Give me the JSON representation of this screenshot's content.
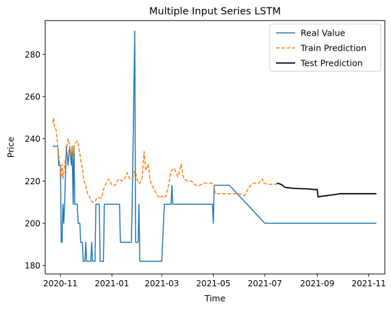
{
  "chart_data": {
    "type": "line",
    "title": "Multiple Input Series LSTM",
    "xlabel": "Time",
    "ylabel": "Price",
    "x_type": "date",
    "xlim": [
      "2020-10-14",
      "2021-11-20"
    ],
    "ylim": [
      176,
      296
    ],
    "x_ticks": [
      {
        "date": "2020-11-01",
        "label": "2020-11"
      },
      {
        "date": "2021-01-01",
        "label": "2021-01"
      },
      {
        "date": "2021-03-01",
        "label": "2021-03"
      },
      {
        "date": "2021-05-01",
        "label": "2021-05"
      },
      {
        "date": "2021-07-01",
        "label": "2021-07"
      },
      {
        "date": "2021-09-01",
        "label": "2021-09"
      },
      {
        "date": "2021-11-01",
        "label": "2021-11"
      }
    ],
    "y_ticks": [
      180,
      200,
      220,
      240,
      260,
      280
    ],
    "grid": false,
    "legend_position": "upper-right",
    "series": [
      {
        "name": "Real Value",
        "color": "#1f77b4",
        "dash": "solid",
        "points": [
          [
            "2020-10-23",
            236.5
          ],
          [
            "2020-10-29",
            236.5
          ],
          [
            "2020-10-30",
            227.5
          ],
          [
            "2020-11-01",
            227.5
          ],
          [
            "2020-11-02",
            191
          ],
          [
            "2020-11-03",
            191
          ],
          [
            "2020-11-04",
            209
          ],
          [
            "2020-11-05",
            200
          ],
          [
            "2020-11-06",
            209
          ],
          [
            "2020-11-08",
            236.5
          ],
          [
            "2020-11-10",
            227.5
          ],
          [
            "2020-11-12",
            236.5
          ],
          [
            "2020-11-14",
            227.5
          ],
          [
            "2020-11-15",
            236.5
          ],
          [
            "2020-11-16",
            209
          ],
          [
            "2020-11-17",
            236.5
          ],
          [
            "2020-11-18",
            209
          ],
          [
            "2020-11-21",
            209
          ],
          [
            "2020-11-22",
            200
          ],
          [
            "2020-11-24",
            200
          ],
          [
            "2020-11-25",
            191
          ],
          [
            "2020-11-27",
            191
          ],
          [
            "2020-11-28",
            182
          ],
          [
            "2020-11-30",
            182
          ],
          [
            "2020-12-01",
            191
          ],
          [
            "2020-12-02",
            182
          ],
          [
            "2020-12-07",
            182
          ],
          [
            "2020-12-08",
            191
          ],
          [
            "2020-12-09",
            182
          ],
          [
            "2020-12-12",
            182
          ],
          [
            "2020-12-13",
            209
          ],
          [
            "2020-12-17",
            209
          ],
          [
            "2020-12-18",
            182
          ],
          [
            "2020-12-22",
            182
          ],
          [
            "2020-12-23",
            209
          ],
          [
            "2021-01-08",
            209
          ],
          [
            "2021-01-10",
            209
          ],
          [
            "2021-01-11",
            191
          ],
          [
            "2021-01-24",
            191
          ],
          [
            "2021-01-25",
            209
          ],
          [
            "2021-01-28",
            291
          ],
          [
            "2021-01-29",
            191
          ],
          [
            "2021-02-01",
            191
          ],
          [
            "2021-02-02",
            209
          ],
          [
            "2021-02-03",
            182
          ],
          [
            "2021-02-20",
            182
          ],
          [
            "2021-03-01",
            182
          ],
          [
            "2021-03-04",
            209
          ],
          [
            "2021-03-12",
            209
          ],
          [
            "2021-03-13",
            218
          ],
          [
            "2021-03-14",
            209
          ],
          [
            "2021-04-01",
            209
          ],
          [
            "2021-04-30",
            209
          ],
          [
            "2021-05-01",
            200
          ],
          [
            "2021-05-02",
            218
          ],
          [
            "2021-05-10",
            218
          ],
          [
            "2021-05-20",
            218
          ],
          [
            "2021-07-01",
            200
          ],
          [
            "2021-11-10",
            200
          ]
        ]
      },
      {
        "name": "Train Prediction",
        "color": "#ff7f0e",
        "dash": "dashed",
        "points": [
          [
            "2020-10-23",
            247.5
          ],
          [
            "2020-10-24",
            250
          ],
          [
            "2020-10-25",
            246
          ],
          [
            "2020-10-27",
            244
          ],
          [
            "2020-10-28",
            240
          ],
          [
            "2020-10-30",
            232
          ],
          [
            "2020-11-01",
            226
          ],
          [
            "2020-11-02",
            222
          ],
          [
            "2020-11-03",
            228
          ],
          [
            "2020-11-04",
            221
          ],
          [
            "2020-11-06",
            227
          ],
          [
            "2020-11-08",
            234
          ],
          [
            "2020-11-10",
            240
          ],
          [
            "2020-11-12",
            237
          ],
          [
            "2020-11-13",
            233
          ],
          [
            "2020-11-15",
            236
          ],
          [
            "2020-11-16",
            230
          ],
          [
            "2020-11-17",
            236
          ],
          [
            "2020-11-19",
            238
          ],
          [
            "2020-11-21",
            239
          ],
          [
            "2020-11-23",
            236
          ],
          [
            "2020-11-25",
            230
          ],
          [
            "2020-11-27",
            226
          ],
          [
            "2020-11-29",
            220
          ],
          [
            "2020-12-01",
            218
          ],
          [
            "2020-12-03",
            214
          ],
          [
            "2020-12-05",
            213
          ],
          [
            "2020-12-07",
            211
          ],
          [
            "2020-12-09",
            210
          ],
          [
            "2020-12-12",
            210
          ],
          [
            "2020-12-14",
            212
          ],
          [
            "2020-12-17",
            212
          ],
          [
            "2020-12-20",
            212
          ],
          [
            "2020-12-22",
            216
          ],
          [
            "2020-12-25",
            219
          ],
          [
            "2020-12-28",
            221
          ],
          [
            "2021-01-01",
            218
          ],
          [
            "2021-01-05",
            218
          ],
          [
            "2021-01-07",
            220
          ],
          [
            "2021-01-10",
            221
          ],
          [
            "2021-01-13",
            220
          ],
          [
            "2021-01-16",
            221
          ],
          [
            "2021-01-19",
            224
          ],
          [
            "2021-01-22",
            221
          ],
          [
            "2021-01-26",
            222
          ],
          [
            "2021-01-28",
            225
          ],
          [
            "2021-01-29",
            224
          ],
          [
            "2021-02-01",
            219
          ],
          [
            "2021-02-03",
            219
          ],
          [
            "2021-02-06",
            222
          ],
          [
            "2021-02-08",
            234
          ],
          [
            "2021-02-10",
            225
          ],
          [
            "2021-02-13",
            228
          ],
          [
            "2021-02-15",
            221
          ],
          [
            "2021-02-17",
            218
          ],
          [
            "2021-02-20",
            216
          ],
          [
            "2021-02-24",
            213
          ],
          [
            "2021-02-27",
            212
          ],
          [
            "2021-03-01",
            213
          ],
          [
            "2021-03-03",
            212
          ],
          [
            "2021-03-06",
            213
          ],
          [
            "2021-03-09",
            218
          ],
          [
            "2021-03-12",
            225
          ],
          [
            "2021-03-16",
            226
          ],
          [
            "2021-03-20",
            222
          ],
          [
            "2021-03-24",
            228
          ],
          [
            "2021-03-27",
            221
          ],
          [
            "2021-04-01",
            220
          ],
          [
            "2021-04-05",
            220
          ],
          [
            "2021-04-10",
            218
          ],
          [
            "2021-04-15",
            218
          ],
          [
            "2021-04-20",
            219
          ],
          [
            "2021-04-25",
            219
          ],
          [
            "2021-04-30",
            219
          ],
          [
            "2021-05-02",
            218
          ],
          [
            "2021-05-03",
            214
          ],
          [
            "2021-05-10",
            214
          ],
          [
            "2021-05-20",
            214
          ],
          [
            "2021-06-01",
            214
          ],
          [
            "2021-06-07",
            213
          ],
          [
            "2021-06-12",
            217
          ],
          [
            "2021-06-17",
            219
          ],
          [
            "2021-06-20",
            219
          ],
          [
            "2021-06-24",
            219
          ],
          [
            "2021-06-28",
            221
          ],
          [
            "2021-06-29",
            219
          ],
          [
            "2021-07-05",
            218.5
          ],
          [
            "2021-07-10",
            218.5
          ],
          [
            "2021-07-15",
            218.5
          ]
        ]
      },
      {
        "name": "Test Prediction",
        "color": "#000000",
        "dash": "solid",
        "points": [
          [
            "2021-07-15",
            219
          ],
          [
            "2021-07-20",
            218.5
          ],
          [
            "2021-07-25",
            217
          ],
          [
            "2021-08-05",
            216.5
          ],
          [
            "2021-08-20",
            216.3
          ],
          [
            "2021-08-28",
            216
          ],
          [
            "2021-09-01",
            216
          ],
          [
            "2021-09-02",
            212.5
          ],
          [
            "2021-09-10",
            213
          ],
          [
            "2021-09-20",
            213.5
          ],
          [
            "2021-09-28",
            214
          ],
          [
            "2021-10-15",
            214
          ],
          [
            "2021-11-01",
            214
          ],
          [
            "2021-11-10",
            214
          ]
        ]
      }
    ]
  }
}
